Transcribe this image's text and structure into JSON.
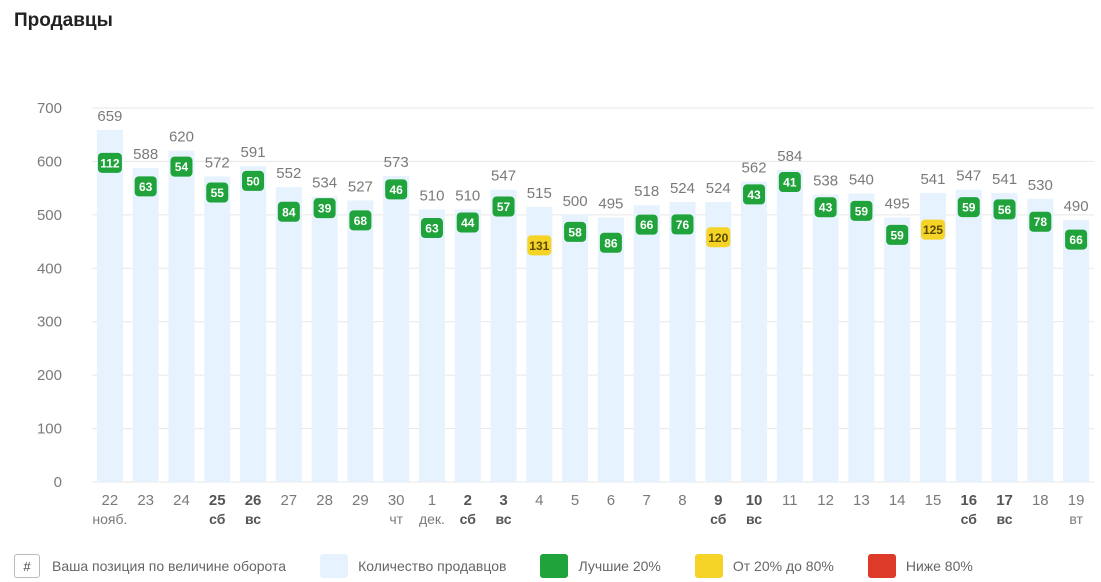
{
  "title": "Продавцы",
  "legend": {
    "position_symbol": "#",
    "position_label": "Ваша позиция по величине оборота",
    "count_label": "Количество продавцов",
    "top_label": "Лучшие 20%",
    "mid_label": "От 20% до 80%",
    "low_label": "Ниже 80%"
  },
  "colors": {
    "bar": "#e6f2fd",
    "top": "#1fa33a",
    "mid": "#f5d327",
    "low": "#dd3a2a",
    "grid": "#e7e7e7",
    "axis_text": "#7a7a7a"
  },
  "chart_data": {
    "type": "bar",
    "ylim": [
      0,
      700
    ],
    "yticks": [
      0,
      100,
      200,
      300,
      400,
      500,
      600,
      700
    ],
    "grid": true,
    "categories": [
      {
        "day": "22",
        "sub": "нояб.",
        "bold": false
      },
      {
        "day": "23",
        "sub": "",
        "bold": false
      },
      {
        "day": "24",
        "sub": "",
        "bold": false
      },
      {
        "day": "25",
        "sub": "сб",
        "bold": true
      },
      {
        "day": "26",
        "sub": "вс",
        "bold": true
      },
      {
        "day": "27",
        "sub": "",
        "bold": false
      },
      {
        "day": "28",
        "sub": "",
        "bold": false
      },
      {
        "day": "29",
        "sub": "",
        "bold": false
      },
      {
        "day": "30",
        "sub": "чт",
        "bold": false
      },
      {
        "day": "1",
        "sub": "дек.",
        "bold": false
      },
      {
        "day": "2",
        "sub": "сб",
        "bold": true
      },
      {
        "day": "3",
        "sub": "вс",
        "bold": true
      },
      {
        "day": "4",
        "sub": "",
        "bold": false
      },
      {
        "day": "5",
        "sub": "",
        "bold": false
      },
      {
        "day": "6",
        "sub": "",
        "bold": false
      },
      {
        "day": "7",
        "sub": "",
        "bold": false
      },
      {
        "day": "8",
        "sub": "",
        "bold": false
      },
      {
        "day": "9",
        "sub": "сб",
        "bold": true
      },
      {
        "day": "10",
        "sub": "вс",
        "bold": true
      },
      {
        "day": "11",
        "sub": "",
        "bold": false
      },
      {
        "day": "12",
        "sub": "",
        "bold": false
      },
      {
        "day": "13",
        "sub": "",
        "bold": false
      },
      {
        "day": "14",
        "sub": "",
        "bold": false
      },
      {
        "day": "15",
        "sub": "",
        "bold": false
      },
      {
        "day": "16",
        "sub": "сб",
        "bold": true
      },
      {
        "day": "17",
        "sub": "вс",
        "bold": true
      },
      {
        "day": "18",
        "sub": "",
        "bold": false
      },
      {
        "day": "19",
        "sub": "вт",
        "bold": false
      }
    ],
    "series": [
      {
        "name": "Количество продавцов",
        "values": [
          659,
          588,
          620,
          572,
          591,
          552,
          534,
          527,
          573,
          510,
          510,
          547,
          515,
          500,
          495,
          518,
          524,
          524,
          562,
          584,
          538,
          540,
          495,
          541,
          547,
          541,
          530,
          490
        ]
      },
      {
        "name": "Ваша позиция по величине оборота",
        "values": [
          112,
          63,
          54,
          55,
          50,
          84,
          39,
          68,
          46,
          63,
          44,
          57,
          131,
          58,
          86,
          66,
          76,
          120,
          43,
          41,
          43,
          59,
          59,
          125,
          59,
          56,
          78,
          66
        ],
        "tiers": [
          "top",
          "top",
          "top",
          "top",
          "top",
          "top",
          "top",
          "top",
          "top",
          "top",
          "top",
          "top",
          "mid",
          "top",
          "top",
          "top",
          "top",
          "mid",
          "top",
          "top",
          "top",
          "top",
          "top",
          "mid",
          "top",
          "top",
          "top",
          "top"
        ]
      }
    ]
  }
}
